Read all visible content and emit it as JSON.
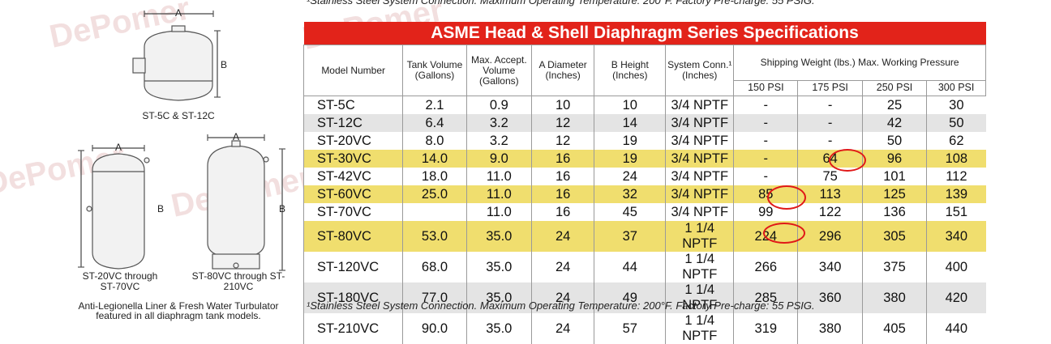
{
  "top_note": "¹Stainless Steel System Connection.  Maximum Operating Temperature: 200°F. Factory Pre-charge: 55 PSIG.",
  "table_title": "ASME Head & Shell Diaphragm Series Specifications",
  "headers": {
    "model": "Model Number",
    "tank_volume": "Tank Volume (Gallons)",
    "max_accept": "Max. Accept. Volume (Gallons)",
    "diameter": "A Diameter (Inches)",
    "height": "B Height (Inches)",
    "system_conn": "System Conn.¹ (Inches)",
    "shipping": "Shipping Weight (lbs.) Max. Working Pressure",
    "psi": [
      "150 PSI",
      "175 PSI",
      "250 PSI",
      "300 PSI"
    ]
  },
  "rows": [
    {
      "model": "ST-5C",
      "vol": "2.1",
      "acc": "0.9",
      "dia": "10",
      "ht": "10",
      "conn": "3/4 NPTF",
      "p150": "-",
      "p175": "-",
      "p250": "25",
      "p300": "30"
    },
    {
      "model": "ST-12C",
      "vol": "6.4",
      "acc": "3.2",
      "dia": "12",
      "ht": "14",
      "conn": "3/4 NPTF",
      "p150": "-",
      "p175": "-",
      "p250": "42",
      "p300": "50"
    },
    {
      "model": "ST-20VC",
      "vol": "8.0",
      "acc": "3.2",
      "dia": "12",
      "ht": "19",
      "conn": "3/4 NPTF",
      "p150": "-",
      "p175": "-",
      "p250": "50",
      "p300": "62"
    },
    {
      "model": "ST-30VC",
      "vol": "14.0",
      "acc": "9.0",
      "dia": "16",
      "ht": "19",
      "conn": "3/4 NPTF",
      "p150": "-",
      "p175": "64",
      "p250": "96",
      "p300": "108"
    },
    {
      "model": "ST-42VC",
      "vol": "18.0",
      "acc": "11.0",
      "dia": "16",
      "ht": "24",
      "conn": "3/4 NPTF",
      "p150": "-",
      "p175": "75",
      "p250": "101",
      "p300": "112"
    },
    {
      "model": "ST-60VC",
      "vol": "25.0",
      "acc": "11.0",
      "dia": "16",
      "ht": "32",
      "conn": "3/4 NPTF",
      "p150": "85",
      "p175": "113",
      "p250": "125",
      "p300": "139"
    },
    {
      "model": "ST-70VC",
      "vol": "",
      "acc": "11.0",
      "dia": "16",
      "ht": "45",
      "conn": "3/4 NPTF",
      "p150": "99",
      "p175": "122",
      "p250": "136",
      "p300": "151"
    },
    {
      "model": "ST-80VC",
      "vol": "53.0",
      "acc": "35.0",
      "dia": "24",
      "ht": "37",
      "conn": "1 1/4 NPTF",
      "p150": "224",
      "p175": "296",
      "p250": "305",
      "p300": "340"
    },
    {
      "model": "ST-120VC",
      "vol": "68.0",
      "acc": "35.0",
      "dia": "24",
      "ht": "44",
      "conn": "1 1/4 NPTF",
      "p150": "266",
      "p175": "340",
      "p250": "375",
      "p300": "400"
    },
    {
      "model": "ST-180VC",
      "vol": "77.0",
      "acc": "35.0",
      "dia": "24",
      "ht": "49",
      "conn": "1 1/4 NPTF",
      "p150": "285",
      "p175": "360",
      "p250": "380",
      "p300": "420"
    },
    {
      "model": "ST-210VC",
      "vol": "90.0",
      "acc": "35.0",
      "dia": "24",
      "ht": "57",
      "conn": "1 1/4 NPTF",
      "p150": "319",
      "p175": "380",
      "p250": "405",
      "p300": "440"
    }
  ],
  "footnote": "¹Stainless Steel System Connection.  Maximum Operating Temperature: 200°F. Factory Pre-charge: 55 PSIG.",
  "diagram_labels": {
    "tank1": "ST-5C & ST-12C",
    "tank2": "ST-20VC through ST-70VC",
    "tank3": "ST-80VC through ST-210VC",
    "dim_a": "A",
    "dim_b": "B",
    "bottom_note": "Anti-Legionella Liner & Fresh Water Turbulator featured in all diaphragm tank models."
  },
  "watermark": "DePomer",
  "colors": {
    "title_bg": "#e2231a",
    "highlight": "#f0de6e",
    "stripe": "#e4e4e4",
    "circle": "#e01818"
  }
}
